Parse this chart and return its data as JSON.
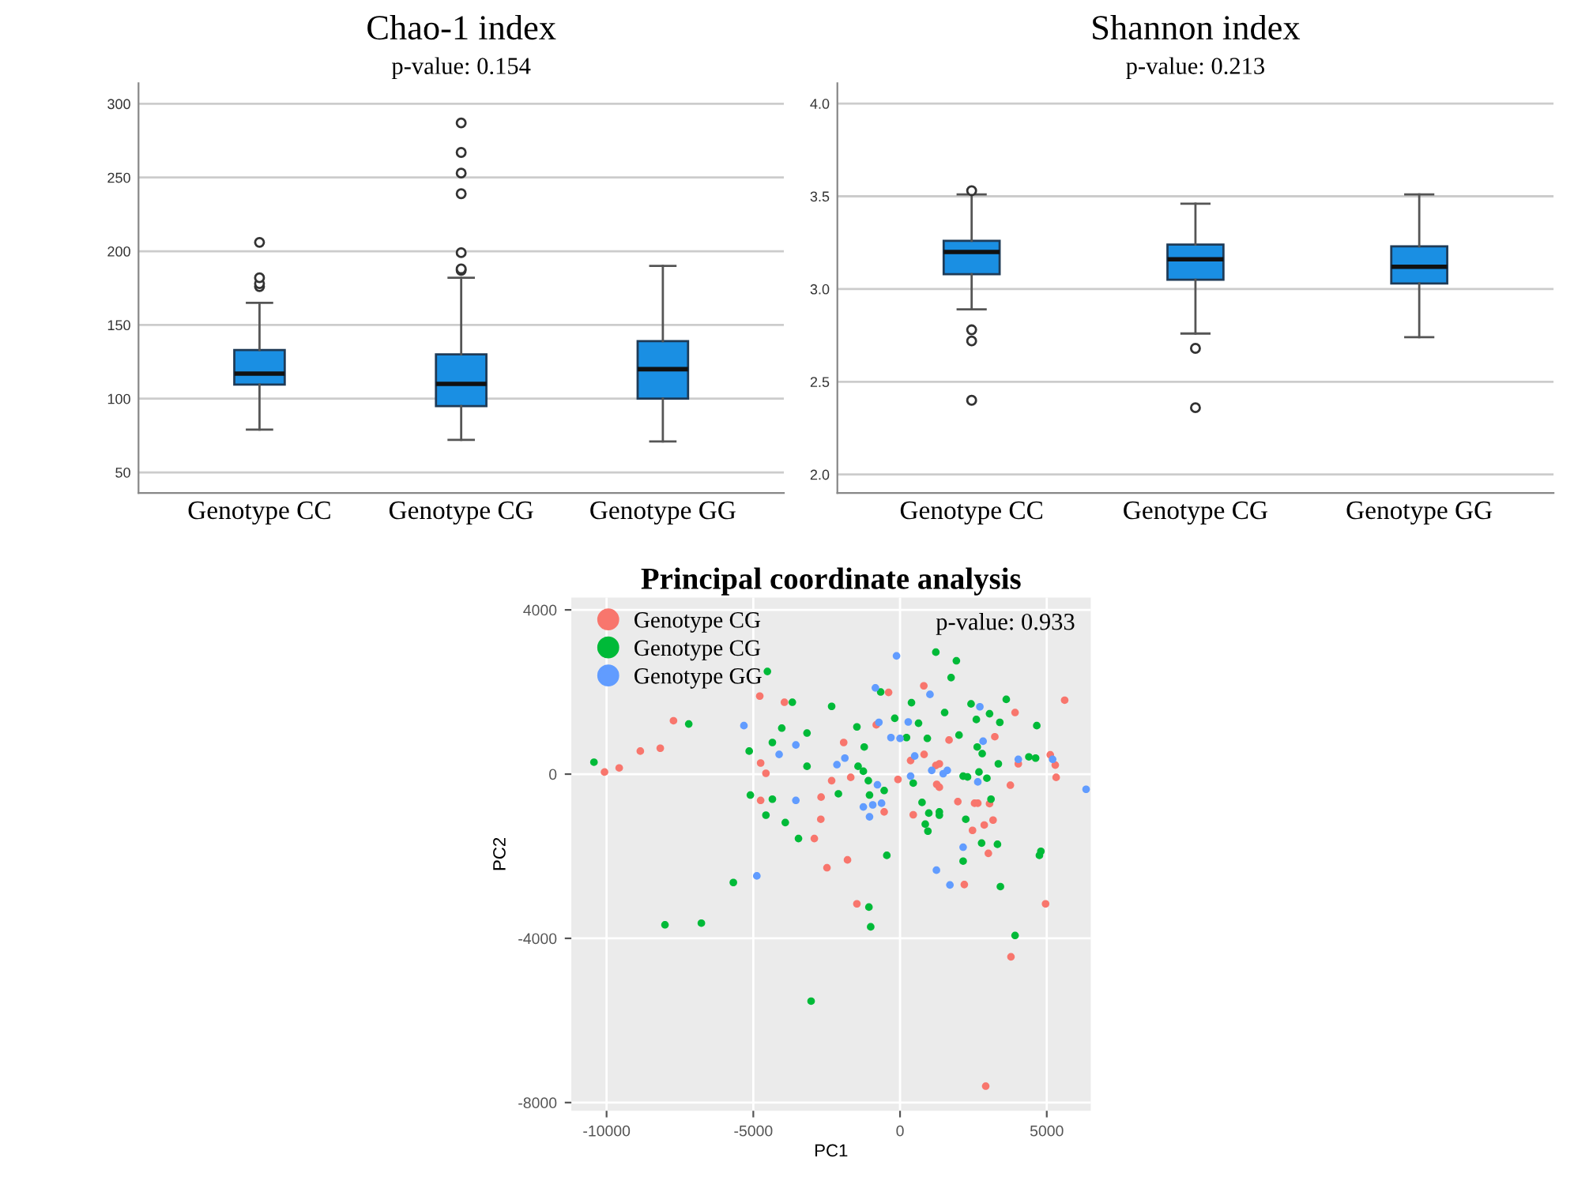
{
  "chart_data": [
    {
      "type": "box",
      "title": "Chao-1 index",
      "annotations": [
        "p-value: 0.154"
      ],
      "categories": [
        "Genotype CC",
        "Genotype CG",
        "Genotype GG"
      ],
      "ylim": [
        36,
        314
      ],
      "yticks": [
        50,
        100,
        150,
        200,
        250,
        300
      ],
      "grid": "y",
      "series": [
        {
          "color": "#1a8fe3",
          "boxes": [
            {
              "low": 79,
              "q1": 109.5,
              "median": 117,
              "q3": 133,
              "high": 165,
              "outliers": [
                176,
                178,
                182,
                206
              ]
            },
            {
              "low": 72,
              "q1": 95,
              "median": 110,
              "q3": 130,
              "high": 182,
              "outliers": [
                187,
                188,
                199,
                239,
                253,
                267,
                287
              ]
            },
            {
              "low": 71,
              "q1": 100,
              "median": 120,
              "q3": 139,
              "high": 190
            }
          ]
        }
      ]
    },
    {
      "type": "box",
      "title": "Shannon index",
      "annotations": [
        "p-value: 0.213"
      ],
      "categories": [
        "Genotype CC",
        "Genotype CG",
        "Genotype GG"
      ],
      "ylim": [
        1.9,
        4.11
      ],
      "yticks": [
        {
          "value": 2.0,
          "label": "2.0"
        },
        {
          "value": 2.5,
          "label": "2.5"
        },
        {
          "value": 3.0,
          "label": "3.0"
        },
        {
          "value": 3.5,
          "label": "3.5"
        },
        {
          "value": 4.0,
          "label": "4.0"
        }
      ],
      "grid": "y",
      "series": [
        {
          "color": "#1a8fe3",
          "boxes": [
            {
              "low": 2.89,
              "q1": 3.08,
              "median": 3.2,
              "q3": 3.26,
              "high": 3.51,
              "outliers": [
                2.4,
                2.72,
                2.78,
                3.53
              ]
            },
            {
              "low": 2.76,
              "q1": 3.05,
              "median": 3.16,
              "q3": 3.24,
              "high": 3.46,
              "outliers": [
                2.36,
                2.68
              ]
            },
            {
              "low": 2.74,
              "q1": 3.03,
              "median": 3.12,
              "q3": 3.23,
              "high": 3.51
            }
          ]
        }
      ]
    },
    {
      "type": "scatter",
      "title": "Principal coordinate analysis",
      "annotations": [
        "p-value: 0.933"
      ],
      "xlabel": "PC1",
      "ylabel": "PC2",
      "xlim": [
        -11200,
        6500
      ],
      "ylim": [
        -8200,
        4300
      ],
      "xticks": [
        -10000,
        -5000,
        0,
        5000
      ],
      "yticks": [
        -8000,
        -4000,
        0,
        4000
      ],
      "grid": true,
      "legend": "top left",
      "marker": "circle",
      "series": [
        {
          "name": "Genotype CG",
          "color": "#f8766d",
          "x": [
            -10070,
            -9570,
            -8850,
            -8170,
            -7720,
            -4780,
            -3940,
            -4750,
            -4570,
            -4750,
            -2700,
            -2690,
            -2330,
            -1920,
            -1680,
            -810,
            -390,
            -70,
            360,
            810,
            820,
            1220,
            1340,
            1670,
            1340,
            1970,
            3050,
            2470,
            3170,
            3230,
            3760,
            3920,
            4030,
            5610,
            5120,
            5290,
            5320,
            2540,
            2650,
            450,
            2870,
            3010,
            2190,
            4960,
            -540,
            1250,
            -2920,
            -2490,
            -1790,
            -1470,
            3780,
            2920
          ],
          "values": [
            50,
            150,
            560,
            630,
            1300,
            1900,
            1750,
            270,
            20,
            -640,
            -1100,
            -560,
            -160,
            770,
            -80,
            1200,
            1990,
            -130,
            330,
            2150,
            480,
            210,
            250,
            830,
            -320,
            -670,
            -720,
            -1370,
            -1120,
            910,
            -270,
            1500,
            250,
            1800,
            470,
            220,
            -80,
            -710,
            -710,
            -990,
            -1240,
            -1930,
            -2690,
            -3160,
            -920,
            -250,
            -1570,
            -2280,
            -2090,
            -3160,
            -4450,
            -7600
          ]
        },
        {
          "name": "Genotype CG",
          "color": "#00ba38",
          "x": [
            -10430,
            -7200,
            -4520,
            -3670,
            -4030,
            -4350,
            -5140,
            -3170,
            -2330,
            -3170,
            -5100,
            -4350,
            -4570,
            -3910,
            -3460,
            -2100,
            -1470,
            -1430,
            -1250,
            -1220,
            -1080,
            -1040,
            -660,
            -540,
            -450,
            -180,
            220,
            390,
            450,
            630,
            750,
            860,
            930,
            1220,
            1340,
            1520,
            1740,
            1920,
            2010,
            2150,
            2240,
            2420,
            2600,
            2630,
            2780,
            2960,
            3050,
            3350,
            3400,
            3620,
            4390,
            4660,
            4620,
            4800,
            4750,
            3920,
            3420,
            3320,
            2150,
            3100,
            1340,
            980,
            950,
            2690,
            2300,
            2800,
            -5680,
            -8010,
            -6770,
            -1060,
            -1000,
            -3030
          ],
          "values": [
            290,
            1220,
            2500,
            1750,
            1120,
            770,
            560,
            1000,
            1650,
            190,
            -510,
            -610,
            -1000,
            -1180,
            -1570,
            -480,
            1150,
            190,
            70,
            660,
            -160,
            -510,
            2000,
            -400,
            -1980,
            1360,
            890,
            1740,
            -220,
            1240,
            -690,
            -1220,
            870,
            2970,
            -920,
            1500,
            2350,
            2760,
            950,
            -50,
            -1100,
            1710,
            1330,
            660,
            -1680,
            -100,
            1470,
            250,
            1260,
            1820,
            420,
            1180,
            390,
            -1880,
            -1980,
            -3930,
            -2740,
            -1710,
            -2120,
            -610,
            -1000,
            -950,
            -1390,
            50,
            -70,
            500,
            -2640,
            -3670,
            -3630,
            -3240,
            -3720,
            -5530
          ]
        },
        {
          "name": "Genotype GG",
          "color": "#619cff",
          "x": [
            -5320,
            -4120,
            -3550,
            -3550,
            -2150,
            -1880,
            -1250,
            -1040,
            -930,
            -770,
            -630,
            -720,
            -840,
            -120,
            -310,
            280,
            360,
            1020,
            1080,
            2720,
            2830,
            4030,
            2150,
            0,
            500,
            1470,
            1610,
            2650,
            5200,
            6340,
            1700,
            -4880,
            1240
          ],
          "values": [
            1180,
            480,
            710,
            -640,
            230,
            390,
            -800,
            -1040,
            -750,
            -260,
            -710,
            1260,
            2100,
            2880,
            890,
            1270,
            -50,
            1940,
            90,
            1640,
            800,
            360,
            -1780,
            870,
            440,
            10,
            90,
            -190,
            360,
            -370,
            -2700,
            -2480,
            -2340
          ]
        }
      ]
    }
  ]
}
